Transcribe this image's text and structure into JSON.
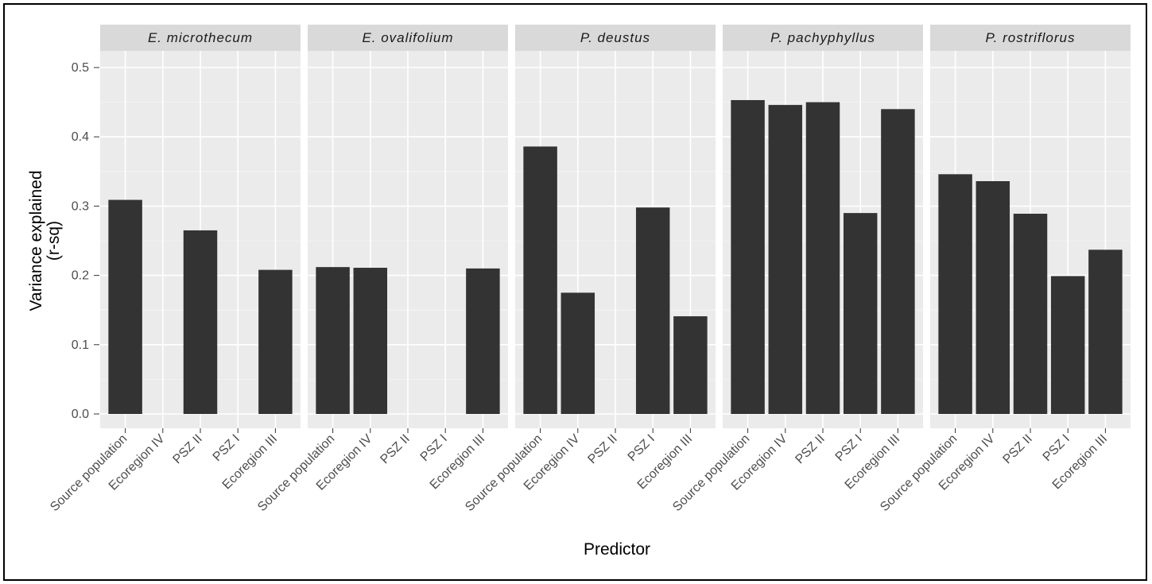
{
  "chart_data": {
    "type": "bar",
    "xlabel": "Predictor",
    "ylabel_lines": [
      "Variance explained",
      "(r-sq)"
    ],
    "ylim": [
      0,
      0.5
    ],
    "yticks": [
      "0.0",
      "0.1",
      "0.2",
      "0.3",
      "0.4",
      "0.5"
    ],
    "grid": true,
    "bar_color": "#333333",
    "panel_bg": "#ebebeb",
    "strip_bg": "#d9d9d9",
    "categories": [
      "Source population",
      "Ecoregion IV",
      "PSZ II",
      "PSZ I",
      "Ecoregion III"
    ],
    "panels": [
      {
        "label": "E. microthecum",
        "values": [
          0.309,
          null,
          0.265,
          null,
          0.208
        ]
      },
      {
        "label": "E. ovalifolium",
        "values": [
          0.212,
          0.211,
          null,
          null,
          0.21
        ]
      },
      {
        "label": "P. deustus",
        "values": [
          0.386,
          0.175,
          null,
          0.298,
          0.141
        ]
      },
      {
        "label": "P. pachyphyllus",
        "values": [
          0.453,
          0.446,
          0.45,
          0.29,
          0.44
        ]
      },
      {
        "label": "P. rostriflorus",
        "values": [
          0.346,
          0.336,
          0.289,
          0.199,
          0.237
        ]
      }
    ]
  }
}
